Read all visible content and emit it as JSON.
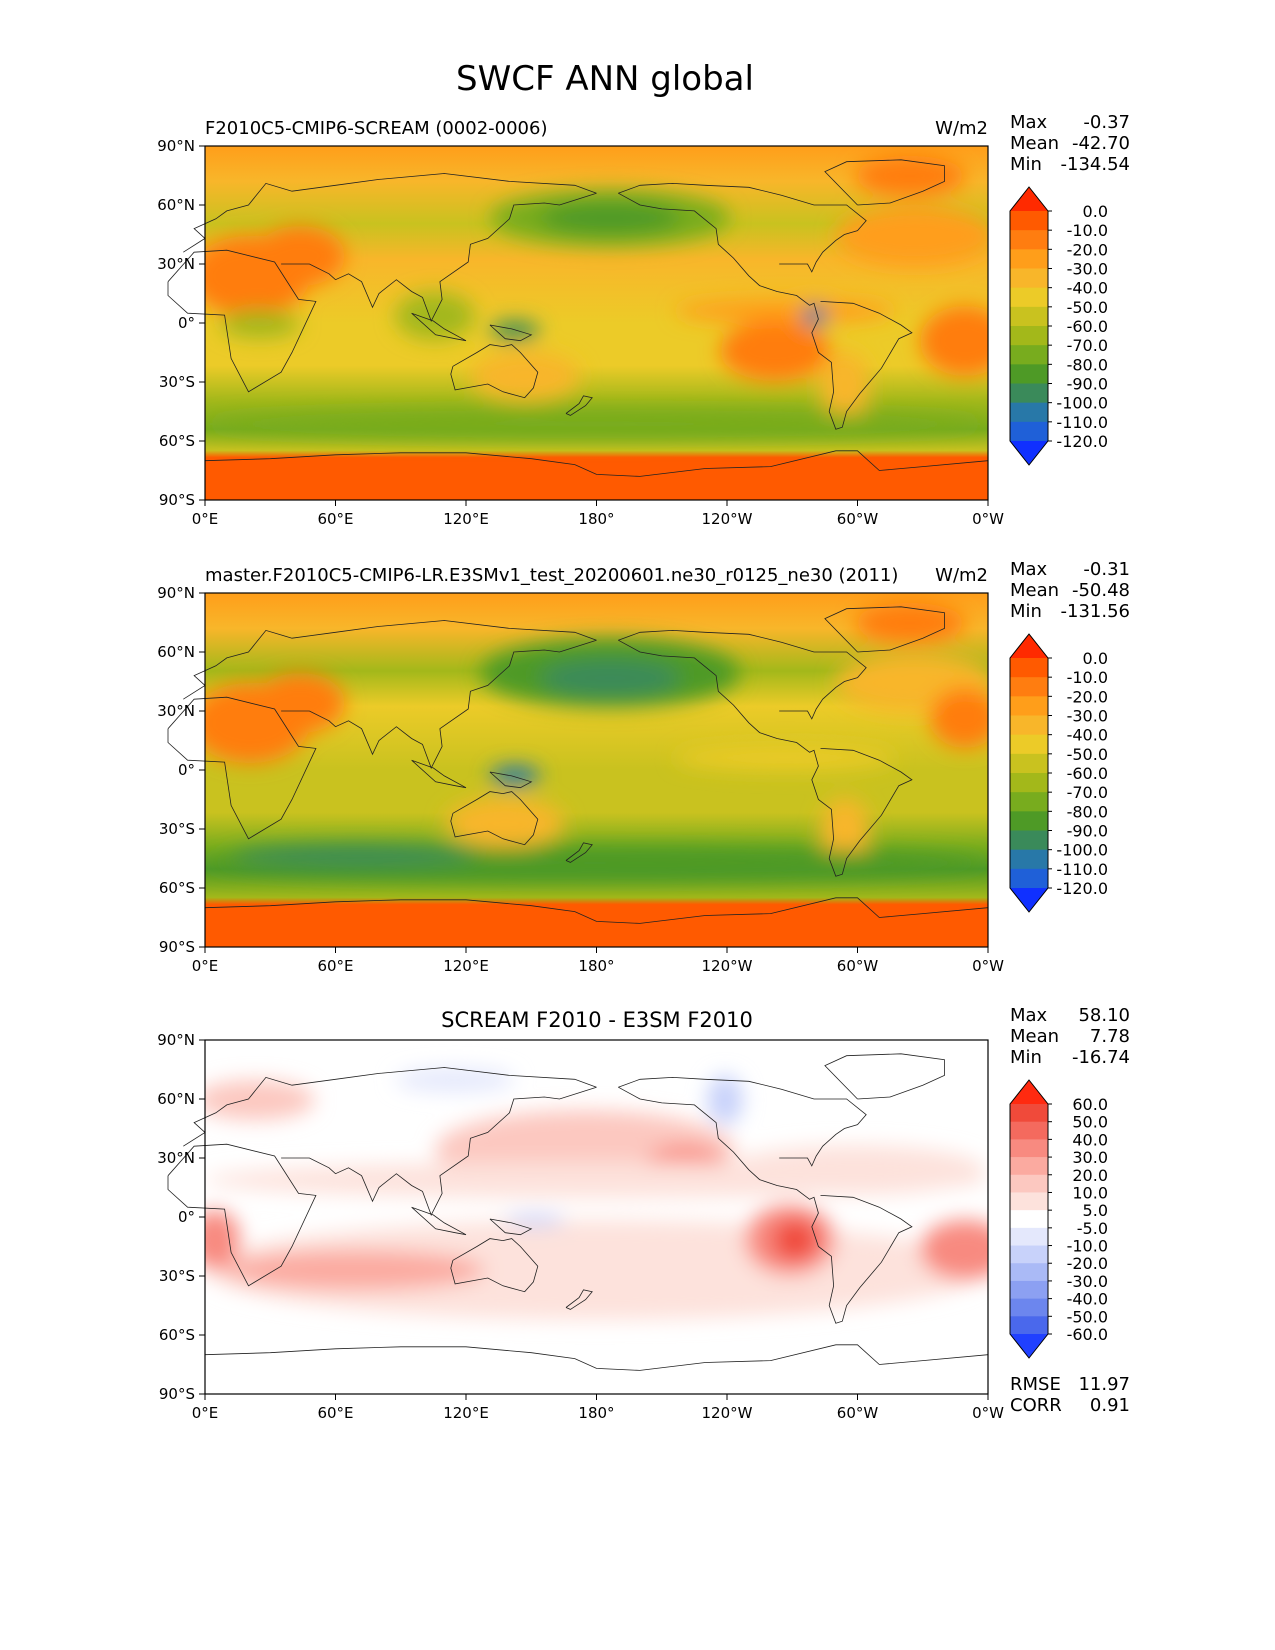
{
  "figure": {
    "title": "SWCF ANN global"
  },
  "chart_data": [
    {
      "type": "heatmap",
      "title": "F2010C5-CMIP6-SCREAM (0002-0006)",
      "units": "W/m2",
      "stats": {
        "max_label": "Max",
        "max": "-0.37",
        "mean_label": "Mean",
        "mean": "-42.70",
        "min_label": "Min",
        "min": "-134.54"
      },
      "xticks": [
        "0°E",
        "60°E",
        "120°E",
        "180°",
        "120°W",
        "60°W",
        "0°W"
      ],
      "yticks": [
        "90°N",
        "60°N",
        "30°N",
        "0°",
        "30°S",
        "60°S",
        "90°S"
      ],
      "xlim": [
        0,
        360
      ],
      "ylim": [
        -90,
        90
      ],
      "colorbar_levels": [
        "0.0",
        "-10.0",
        "-20.0",
        "-30.0",
        "-40.0",
        "-50.0",
        "-60.0",
        "-70.0",
        "-80.0",
        "-90.0",
        "-100.0",
        "-110.0",
        "-120.0"
      ],
      "colorbar_colors": [
        "#ff2a00",
        "#ff5a00",
        "#ff7d10",
        "#ff9e1a",
        "#f8b62a",
        "#eccb28",
        "#c9c21f",
        "#a3b81a",
        "#78ac1e",
        "#4e9a26",
        "#3a8a5a",
        "#2878a8",
        "#1f60d8",
        "#1030ff"
      ],
      "extend": "both"
    },
    {
      "type": "heatmap",
      "title": "master.F2010C5-CMIP6-LR.E3SMv1_test_20200601.ne30_r0125_ne30 (2011)",
      "units": "W/m2",
      "stats": {
        "max_label": "Max",
        "max": "-0.31",
        "mean_label": "Mean",
        "mean": "-50.48",
        "min_label": "Min",
        "min": "-131.56"
      },
      "xticks": [
        "0°E",
        "60°E",
        "120°E",
        "180°",
        "120°W",
        "60°W",
        "0°W"
      ],
      "yticks": [
        "90°N",
        "60°N",
        "30°N",
        "0°",
        "30°S",
        "60°S",
        "90°S"
      ],
      "xlim": [
        0,
        360
      ],
      "ylim": [
        -90,
        90
      ],
      "colorbar_levels": [
        "0.0",
        "-10.0",
        "-20.0",
        "-30.0",
        "-40.0",
        "-50.0",
        "-60.0",
        "-70.0",
        "-80.0",
        "-90.0",
        "-100.0",
        "-110.0",
        "-120.0"
      ],
      "colorbar_colors": [
        "#ff2a00",
        "#ff5a00",
        "#ff7d10",
        "#ff9e1a",
        "#f8b62a",
        "#eccb28",
        "#c9c21f",
        "#a3b81a",
        "#78ac1e",
        "#4e9a26",
        "#3a8a5a",
        "#2878a8",
        "#1f60d8",
        "#1030ff"
      ],
      "extend": "both"
    },
    {
      "type": "heatmap",
      "title": "SCREAM F2010 - E3SM F2010",
      "stats": {
        "max_label": "Max",
        "max": "58.10",
        "mean_label": "Mean",
        "mean": "7.78",
        "min_label": "Min",
        "min": "-16.74"
      },
      "metrics": {
        "rmse_label": "RMSE",
        "rmse": "11.97",
        "corr_label": "CORR",
        "corr": "0.91"
      },
      "xticks": [
        "0°E",
        "60°E",
        "120°E",
        "180°",
        "120°W",
        "60°W",
        "0°W"
      ],
      "yticks": [
        "90°N",
        "60°N",
        "30°N",
        "0°",
        "30°S",
        "60°S",
        "90°S"
      ],
      "xlim": [
        0,
        360
      ],
      "ylim": [
        -90,
        90
      ],
      "colorbar_levels": [
        "60.0",
        "50.0",
        "40.0",
        "30.0",
        "20.0",
        "10.0",
        "5.0",
        "-5.0",
        "-10.0",
        "-20.0",
        "-30.0",
        "-40.0",
        "-50.0",
        "-60.0"
      ],
      "colorbar_colors": [
        "#ff2a10",
        "#f04a3a",
        "#f46a5e",
        "#f88a80",
        "#fbaaa0",
        "#fcc8c0",
        "#fde2dc",
        "#ffffff",
        "#e4e8fc",
        "#c8d2fa",
        "#aabaf6",
        "#8ca0f2",
        "#6c86ee",
        "#4a68ec",
        "#2040ff"
      ],
      "extend": "both"
    }
  ]
}
